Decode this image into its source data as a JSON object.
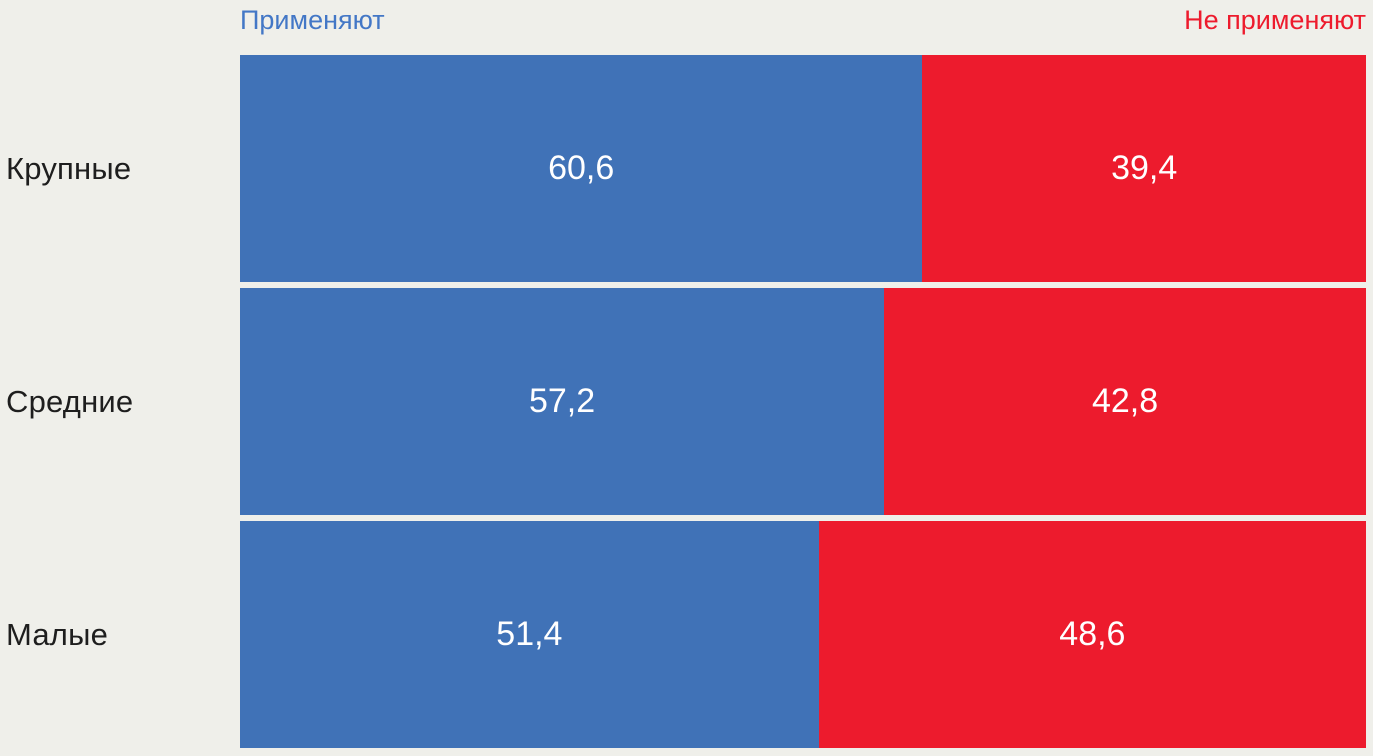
{
  "background_color": "#EFEFEA",
  "colors": {
    "apply_bar": "#4072B7",
    "not_apply_bar": "#ED1B2D",
    "legend_apply_text": "#4377C6",
    "legend_not_apply_text": "#ED1B2D",
    "category_label_text": "#1E1E1E",
    "value_label_text": "#FFFFFF"
  },
  "legend": {
    "apply_label": "Применяют",
    "not_apply_label": "Не применяют"
  },
  "chart_data": {
    "type": "bar",
    "subtype": "horizontal-stacked-100-percent",
    "title": "",
    "xlabel": "",
    "ylabel": "",
    "xlim": [
      0,
      100
    ],
    "grid": false,
    "legend_position": "top",
    "categories": [
      "Крупные",
      "Средние",
      "Малые"
    ],
    "series": [
      {
        "name": "Применяют",
        "color": "#4072B7",
        "values": [
          60.6,
          57.2,
          51.4
        ]
      },
      {
        "name": "Не применяют",
        "color": "#ED1B2D",
        "values": [
          39.4,
          42.8,
          48.6
        ]
      }
    ],
    "value_labels": [
      [
        "60,6",
        "39,4"
      ],
      [
        "57,2",
        "42,8"
      ],
      [
        "51,4",
        "48,6"
      ]
    ]
  }
}
